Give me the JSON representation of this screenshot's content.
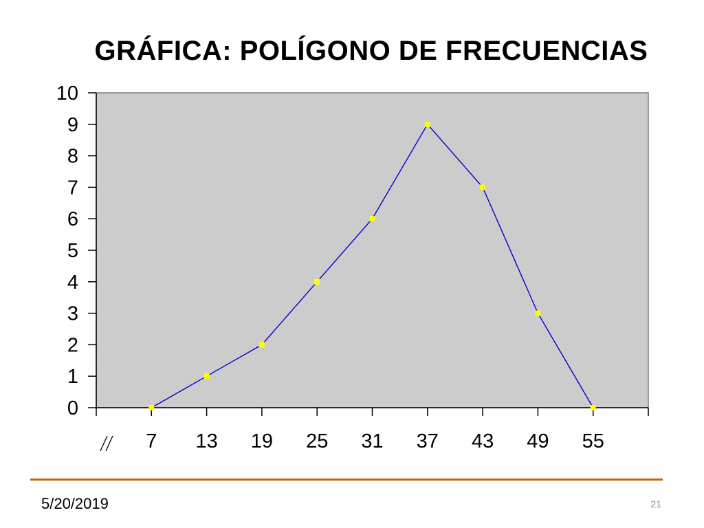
{
  "slide": {
    "date": "5/20/2019",
    "page_number": "21",
    "accent_color": "#cc6600"
  },
  "chart_data": {
    "type": "line",
    "title": "GRÁFICA:  POLÍGONO DE FRECUENCIAS",
    "categories": [
      "7",
      "13",
      "19",
      "25",
      "31",
      "37",
      "43",
      "49",
      "55"
    ],
    "x": [
      7,
      13,
      19,
      25,
      31,
      37,
      43,
      49,
      55
    ],
    "values": [
      0,
      1,
      2,
      4,
      6,
      9,
      7,
      3,
      0
    ],
    "ylim": [
      0,
      10
    ],
    "yticks": [
      0,
      1,
      2,
      3,
      4,
      5,
      6,
      7,
      8,
      9,
      10
    ],
    "xlabel": "",
    "ylabel": "",
    "axis_break_symbol": "//",
    "grid": false,
    "legend": "none",
    "colors": {
      "plot_background": "#cccccc",
      "line": "#0000cc",
      "marker": "#ffff00",
      "axis": "#000000"
    }
  }
}
